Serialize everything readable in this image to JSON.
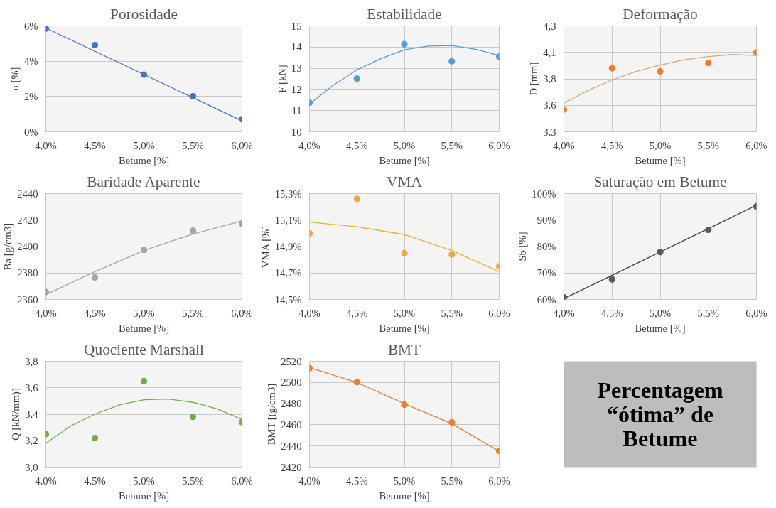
{
  "chart_data": [
    {
      "type": "scatter",
      "title": "Porosidade",
      "xlabel": "Betume [%]",
      "ylabel": "n [%]",
      "grid": true,
      "xlim": [
        4.0,
        6.0
      ],
      "xticks": [
        {
          "value": 4.0,
          "label": "4,0%"
        },
        {
          "value": 4.5,
          "label": "4,5%"
        },
        {
          "value": 5.0,
          "label": "5,0%"
        },
        {
          "value": 5.5,
          "label": "5,5%"
        },
        {
          "value": 6.0,
          "label": "6,0%"
        }
      ],
      "ylim": [
        0,
        6
      ],
      "yticks": [
        {
          "value": 0,
          "label": "0%"
        },
        {
          "value": 2,
          "label": "2%"
        },
        {
          "value": 4,
          "label": "4%"
        },
        {
          "value": 6,
          "label": "6%"
        }
      ],
      "series": [
        {
          "marker": "circle",
          "color": "#4472c4",
          "x": [
            4.0,
            4.5,
            5.0,
            5.5,
            6.0
          ],
          "values": [
            5.85,
            4.91,
            3.24,
            2.01,
            0.71
          ]
        },
        {
          "type": "line",
          "marker": "none",
          "color": "#4472c4",
          "x": [
            4.0,
            6.0
          ],
          "values": [
            5.88,
            0.62
          ]
        }
      ]
    },
    {
      "type": "scatter",
      "title": "Estabilidade",
      "xlabel": "Betume [%]",
      "ylabel": "F [kN]",
      "grid": true,
      "xlim": [
        4.0,
        6.0
      ],
      "xticks": [
        {
          "value": 4.0,
          "label": "4,0%"
        },
        {
          "value": 4.5,
          "label": "4,5%"
        },
        {
          "value": 5.0,
          "label": "5,0%"
        },
        {
          "value": 5.5,
          "label": "5,5%"
        },
        {
          "value": 6.0,
          "label": "6,0%"
        }
      ],
      "ylim": [
        10,
        15
      ],
      "yticks": [
        10,
        11,
        12,
        13,
        14,
        15
      ],
      "series": [
        {
          "marker": "circle",
          "color": "#5b9bd5",
          "x": [
            4.0,
            4.5,
            5.0,
            5.5,
            6.0
          ],
          "values": [
            11.37,
            12.51,
            14.14,
            13.33,
            13.55
          ]
        },
        {
          "type": "line",
          "marker": "none",
          "color": "#5b9bd5",
          "x": [
            4.0,
            4.25,
            4.5,
            4.75,
            5.0,
            5.25,
            5.5,
            5.75,
            6.0
          ],
          "values": [
            11.32,
            12.2,
            12.92,
            13.45,
            13.87,
            14.05,
            14.07,
            13.9,
            13.6
          ]
        }
      ]
    },
    {
      "type": "scatter",
      "title": "Deformação",
      "xlabel": "Betume [%]",
      "ylabel": "D [mm]",
      "grid": true,
      "xlim": [
        4.0,
        6.0
      ],
      "xticks": [
        {
          "value": 4.0,
          "label": "4,0%"
        },
        {
          "value": 4.5,
          "label": "4,5%"
        },
        {
          "value": 5.0,
          "label": "5,0%"
        },
        {
          "value": 5.5,
          "label": "5,5%"
        },
        {
          "value": 6.0,
          "label": "6,0%"
        }
      ],
      "ylim": [
        3.3,
        4.3
      ],
      "yticks": [
        {
          "value": 3.3,
          "label": "3,3"
        },
        {
          "value": 3.55,
          "label": "3,6"
        },
        {
          "value": 3.8,
          "label": "3,8"
        },
        {
          "value": 4.05,
          "label": "4,1"
        },
        {
          "value": 4.3,
          "label": "4,3"
        }
      ],
      "series": [
        {
          "marker": "circle",
          "color": "#ed7d31",
          "x": [
            4.0,
            4.5,
            5.0,
            5.5,
            6.0
          ],
          "values": [
            3.51,
            3.9,
            3.87,
            3.95,
            4.05
          ]
        },
        {
          "type": "line",
          "marker": "none",
          "color": "#dba56e",
          "x": [
            4.0,
            4.25,
            4.5,
            4.75,
            5.0,
            5.25,
            5.5,
            5.75,
            6.0
          ],
          "values": [
            3.57,
            3.69,
            3.79,
            3.87,
            3.93,
            3.98,
            4.01,
            4.03,
            4.02
          ]
        }
      ]
    },
    {
      "type": "scatter",
      "title": "Baridade Aparente",
      "xlabel": "Betume [%]",
      "ylabel": "Ba [g/cm3]",
      "grid": true,
      "xlim": [
        4.0,
        6.0
      ],
      "xticks": [
        {
          "value": 4.0,
          "label": "4,0%"
        },
        {
          "value": 4.5,
          "label": "4,5%"
        },
        {
          "value": 5.0,
          "label": "5,0%"
        },
        {
          "value": 5.5,
          "label": "5,5%"
        },
        {
          "value": 6.0,
          "label": "6,0%"
        }
      ],
      "ylim": [
        2360,
        2440
      ],
      "yticks": [
        2360,
        2380,
        2400,
        2420,
        2440
      ],
      "series": [
        {
          "marker": "circle",
          "color": "#a5a5a5",
          "x": [
            4.0,
            4.5,
            5.0,
            5.5,
            6.0
          ],
          "values": [
            2365.6,
            2376.7,
            2397.5,
            2412,
            2417.3
          ]
        },
        {
          "type": "line",
          "marker": "none",
          "color": "#a5a5a5",
          "x": [
            4.0,
            4.5,
            5.0,
            5.5,
            6.0
          ],
          "values": [
            2363.7,
            2381,
            2397,
            2409.5,
            2419.4
          ]
        }
      ]
    },
    {
      "type": "scatter",
      "title": "VMA",
      "xlabel": "Betume [%]",
      "ylabel": "VMA [%]",
      "grid": true,
      "xlim": [
        4.0,
        6.0
      ],
      "xticks": [
        {
          "value": 4.0,
          "label": "4,0%"
        },
        {
          "value": 4.5,
          "label": "4,5%"
        },
        {
          "value": 5.0,
          "label": "5,0%"
        },
        {
          "value": 5.5,
          "label": "5,5%"
        },
        {
          "value": 6.0,
          "label": "6,0%"
        }
      ],
      "ylim": [
        14.5,
        15.3
      ],
      "yticks": [
        {
          "value": 14.5,
          "label": "14,5%"
        },
        {
          "value": 14.7,
          "label": "14,7%"
        },
        {
          "value": 14.9,
          "label": "14,9%"
        },
        {
          "value": 15.1,
          "label": "15,1%"
        },
        {
          "value": 15.3,
          "label": "15,3%"
        }
      ],
      "series": [
        {
          "marker": "circle",
          "color": "#f4a442",
          "x": [
            4.0,
            4.5,
            5.0,
            5.5,
            6.0
          ],
          "values": [
            15.0,
            15.26,
            14.85,
            14.84,
            14.75
          ]
        },
        {
          "type": "line",
          "marker": "none",
          "color": "#e2b23c",
          "x": [
            4.0,
            4.5,
            5.0,
            5.5,
            6.0
          ],
          "values": [
            15.085,
            15.05,
            14.99,
            14.87,
            14.71
          ]
        }
      ]
    },
    {
      "type": "scatter",
      "title": "Saturação em Betume",
      "xlabel": "Betume [%]",
      "ylabel": "Sb [%]",
      "grid": true,
      "xlim": [
        4.0,
        6.0
      ],
      "xticks": [
        {
          "value": 4.0,
          "label": "4,0%"
        },
        {
          "value": 4.5,
          "label": "4,5%"
        },
        {
          "value": 5.0,
          "label": "5,0%"
        },
        {
          "value": 5.5,
          "label": "5,5%"
        },
        {
          "value": 6.0,
          "label": "6,0%"
        }
      ],
      "ylim": [
        60,
        100
      ],
      "yticks": [
        {
          "value": 60,
          "label": "60%"
        },
        {
          "value": 70,
          "label": "70%"
        },
        {
          "value": 80,
          "label": "80%"
        },
        {
          "value": 90,
          "label": "90%"
        },
        {
          "value": 100,
          "label": "100%"
        }
      ],
      "series": [
        {
          "marker": "circle",
          "color": "#595959",
          "x": [
            4.0,
            4.5,
            5.0,
            5.5,
            6.0
          ],
          "values": [
            60.8,
            67.6,
            77.9,
            86.3,
            95.2
          ]
        },
        {
          "type": "line",
          "marker": "none",
          "color": "#404040",
          "x": [
            4.0,
            6.0
          ],
          "values": [
            60.3,
            95.6
          ]
        }
      ]
    },
    {
      "type": "scatter",
      "title": "Quociente Marshall",
      "xlabel": "Betume [%]",
      "ylabel": "Q [kN/mm)]",
      "grid": true,
      "xlim": [
        4.0,
        6.0
      ],
      "xticks": [
        {
          "value": 4.0,
          "label": "4,0%"
        },
        {
          "value": 4.5,
          "label": "4,5%"
        },
        {
          "value": 5.0,
          "label": "5,0%"
        },
        {
          "value": 5.5,
          "label": "5,5%"
        },
        {
          "value": 6.0,
          "label": "6,0%"
        }
      ],
      "ylim": [
        3.0,
        3.8
      ],
      "yticks": [
        {
          "value": 3.0,
          "label": "3,0"
        },
        {
          "value": 3.2,
          "label": "3,2"
        },
        {
          "value": 3.4,
          "label": "3,4"
        },
        {
          "value": 3.6,
          "label": "3,6"
        },
        {
          "value": 3.8,
          "label": "3,8"
        }
      ],
      "series": [
        {
          "marker": "circle",
          "color": "#70ad47",
          "x": [
            4.0,
            4.5,
            5.0,
            5.5,
            6.0
          ],
          "values": [
            3.25,
            3.22,
            3.65,
            3.38,
            3.34
          ]
        },
        {
          "type": "line",
          "marker": "none",
          "color": "#70ad47",
          "x": [
            4.0,
            4.25,
            4.5,
            4.75,
            5.0,
            5.25,
            5.5,
            5.75,
            6.0
          ],
          "values": [
            3.18,
            3.31,
            3.4,
            3.47,
            3.51,
            3.515,
            3.49,
            3.44,
            3.36
          ]
        }
      ]
    },
    {
      "type": "scatter",
      "title": "BMT",
      "xlabel": "Betume [%]",
      "ylabel": "BMT [(g/cm3]",
      "grid": true,
      "xlim": [
        4.0,
        6.0
      ],
      "xticks": [
        {
          "value": 4.0,
          "label": "4,0%"
        },
        {
          "value": 4.5,
          "label": "4,5%"
        },
        {
          "value": 5.0,
          "label": "5,0%"
        },
        {
          "value": 5.5,
          "label": "5,5%"
        },
        {
          "value": 6.0,
          "label": "6,0%"
        }
      ],
      "ylim": [
        2420,
        2520
      ],
      "yticks": [
        2420,
        2440,
        2460,
        2480,
        2500,
        2520
      ],
      "series": [
        {
          "marker": "circle",
          "color": "#ed7d31",
          "x": [
            4.0,
            4.5,
            5.0,
            5.5,
            6.0
          ],
          "values": [
            2513.5,
            2500.4,
            2479.1,
            2462.3,
            2435.5
          ]
        },
        {
          "type": "line",
          "marker": "none",
          "color": "#ed7d31",
          "x": [
            4.0,
            4.5,
            5.0,
            5.5,
            6.0
          ],
          "values": [
            2514,
            2500,
            2480,
            2461,
            2435
          ]
        }
      ]
    },
    {
      "type": "other",
      "annotations": [
        "Percentagem",
        "“ótima” de",
        "Betume"
      ]
    }
  ]
}
